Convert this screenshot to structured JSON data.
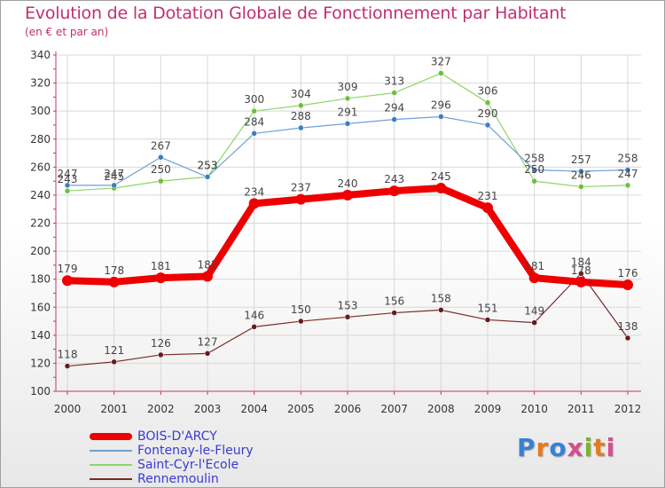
{
  "header": {
    "title": "Evolution de la Dotation Globale de Fonctionnement par Habitant",
    "subtitle": "(en € et par an)"
  },
  "logo": {
    "text": "Proxiti",
    "colors": [
      "#3a7fd5",
      "#e87a1e",
      "#3a7fd5",
      "#d84d8c",
      "#7ab42c",
      "#e87a1e",
      "#d84d8c"
    ]
  },
  "chart_data": {
    "type": "line",
    "title": "Evolution de la Dotation Globale de Fonctionnement par Habitant",
    "subtitle": "(en € et par an)",
    "xlabel": "",
    "ylabel": "",
    "ylim": [
      100,
      340
    ],
    "yticks": [
      100,
      120,
      140,
      160,
      180,
      200,
      220,
      240,
      260,
      280,
      300,
      320,
      340
    ],
    "grid": true,
    "legend": "bottom-left",
    "x": [
      "2000",
      "2001",
      "2002",
      "2003",
      "2004",
      "2005",
      "2006",
      "2007",
      "2008",
      "2009",
      "2010",
      "2011",
      "2012"
    ],
    "series": [
      {
        "name": "Saint-Cyr-l'Ecole",
        "color": "#8cd66a",
        "point_color": "#6cc040",
        "width": 1.2,
        "values": [
          243,
          245,
          250,
          253,
          300,
          304,
          309,
          313,
          327,
          306,
          250,
          246,
          247
        ]
      },
      {
        "name": "Fontenay-le-Fleury",
        "color": "#6fa0d6",
        "point_color": "#3c7ec0",
        "width": 1.2,
        "values": [
          247,
          247,
          267,
          253,
          284,
          288,
          291,
          294,
          296,
          290,
          258,
          257,
          258
        ]
      },
      {
        "name": "Rennemoulin",
        "color": "#7a2a2a",
        "point_color": "#6a1a1a",
        "width": 1.2,
        "values": [
          118,
          121,
          126,
          127,
          146,
          150,
          153,
          156,
          158,
          151,
          149,
          184,
          138
        ]
      },
      {
        "name": "BOIS-D'ARCY",
        "color": "#ee0000",
        "point_color": "#ee0000",
        "width": 8,
        "values": [
          179,
          178,
          181,
          182,
          234,
          237,
          240,
          243,
          245,
          231,
          181,
          178,
          176
        ]
      }
    ],
    "legend_order": [
      "BOIS-D'ARCY",
      "Fontenay-le-Fleury",
      "Saint-Cyr-l'Ecole",
      "Rennemoulin"
    ]
  }
}
